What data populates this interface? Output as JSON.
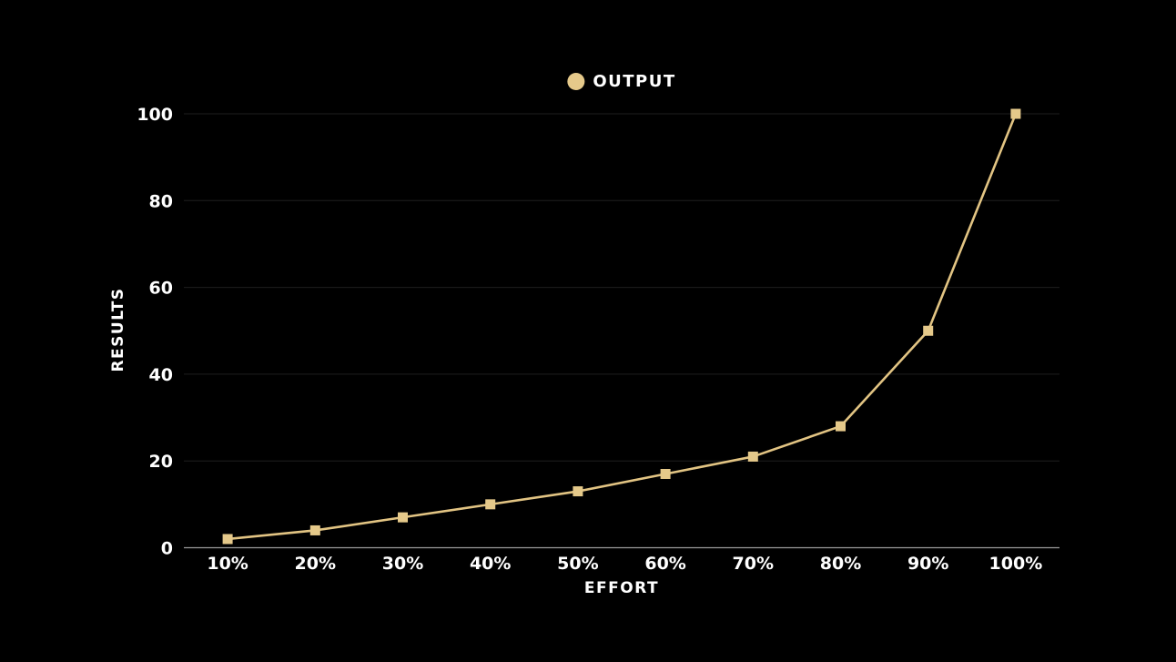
{
  "page": {
    "background_color": "#000000"
  },
  "legend": {
    "items": [
      {
        "label": "OUTPUT",
        "color": "#E5C98A",
        "shape": "circle"
      }
    ],
    "position": "top-center"
  },
  "chart_data": {
    "type": "line",
    "title": "",
    "categories": [
      "10%",
      "20%",
      "30%",
      "40%",
      "50%",
      "60%",
      "70%",
      "80%",
      "90%",
      "100%"
    ],
    "series": [
      {
        "name": "OUTPUT",
        "values": [
          2,
          4,
          7,
          10,
          13,
          17,
          21,
          28,
          50,
          100
        ],
        "color": "#E2C483",
        "marker": "square"
      }
    ],
    "xlabel": "EFFORT",
    "ylabel": "RESULTS",
    "ylim": [
      0,
      100
    ],
    "y_ticks": [
      0,
      20,
      40,
      60,
      80,
      100
    ],
    "grid": "horizontal-only",
    "legend_position": "top-center",
    "colors": {
      "background": "#000000",
      "gridline": "#1e1e1e",
      "axis_line": "#9a9a9a",
      "tick_label": "#ffffff",
      "series": "#E2C483",
      "marker": "#E5C98A"
    }
  }
}
